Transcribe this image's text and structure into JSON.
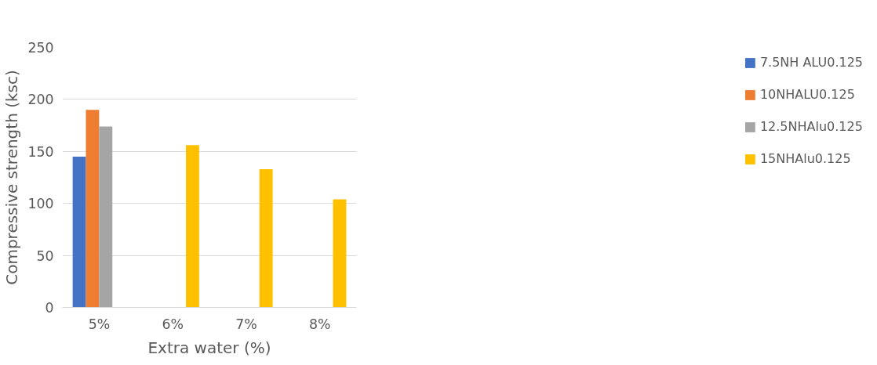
{
  "chart_data": {
    "type": "bar",
    "xlabel": "Extra water (%)",
    "ylabel": "Compressive strength (ksc)",
    "categories": [
      "5%",
      "6%",
      "7%",
      "8%"
    ],
    "series": [
      {
        "name": "7.5NH ALU0.125",
        "color": "#4472c4",
        "values": [
          145,
          null,
          null,
          null
        ]
      },
      {
        "name": "10NHALU0.125",
        "color": "#ed7d31",
        "values": [
          190,
          null,
          null,
          null
        ]
      },
      {
        "name": "12.5NHAlu0.125",
        "color": "#a5a5a5",
        "values": [
          174,
          null,
          null,
          null
        ]
      },
      {
        "name": "15NHAlu0.125",
        "color": "#ffc000",
        "values": [
          null,
          156,
          133,
          104
        ]
      }
    ],
    "ylim": [
      0,
      250
    ],
    "yticks": [
      0,
      50,
      100,
      150,
      200,
      250
    ],
    "grid": "y",
    "legend": "right"
  }
}
